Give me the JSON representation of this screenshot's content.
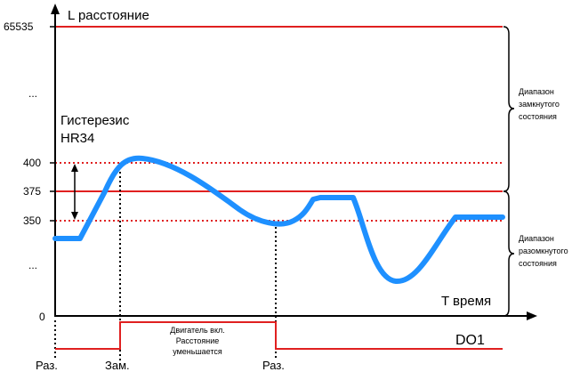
{
  "y_axis": {
    "title": "L расстояние",
    "ticks": [
      "65535",
      "...",
      "400",
      "375",
      "350",
      "...",
      "0"
    ]
  },
  "x_axis": {
    "title": "T время"
  },
  "hysteresis": {
    "line1": "Гистерезис",
    "line2": "HR34"
  },
  "ranges": {
    "closed": [
      "Диапазон",
      "замкнутого",
      "состояния"
    ],
    "open": [
      "Диапазон",
      "разомкнутого",
      "состояния"
    ]
  },
  "do1": {
    "label": "DO1",
    "note": [
      "Двигатель вкл.",
      "Расстояние",
      "уменьшается"
    ],
    "states": [
      "Раз.",
      "Зам.",
      "Раз."
    ]
  },
  "colors": {
    "curve": "#1e90ff",
    "threshold": "#e02020",
    "dotted": "#e02020",
    "axis": "#000000"
  }
}
